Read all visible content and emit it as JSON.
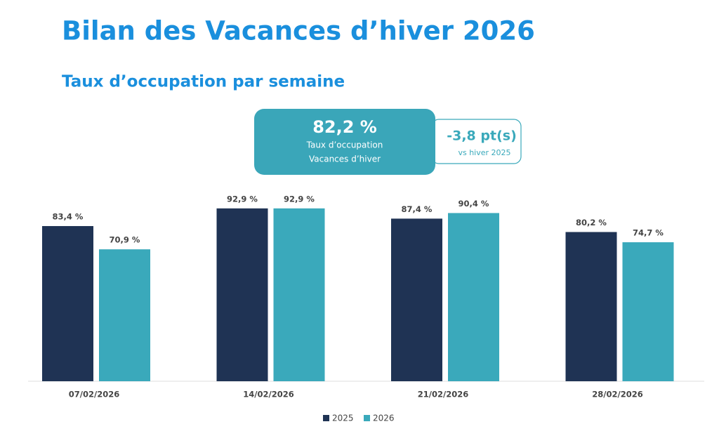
{
  "chart_data": {
    "type": "bar",
    "title": "Bilan des Vacances d’hiver 2026",
    "subtitle": "Taux d’occupation par semaine",
    "categories": [
      "07/02/2026",
      "14/02/2026",
      "21/02/2026",
      "28/02/2026"
    ],
    "series": [
      {
        "name": "2025",
        "color": "#1f3354",
        "values": [
          83.4,
          92.9,
          87.4,
          80.2
        ],
        "value_labels": [
          "83,4 %",
          "92,9 %",
          "87,4 %",
          "80,2 %"
        ]
      },
      {
        "name": "2026",
        "color": "#3aa9bb",
        "values": [
          70.9,
          92.9,
          90.4,
          74.7
        ],
        "value_labels": [
          "70,9 %",
          "92,9 %",
          "90,4 %",
          "74,7 %"
        ]
      }
    ],
    "ylim": [
      0,
      100
    ],
    "legend": "bottom"
  },
  "kpi": {
    "value": "82,2 %",
    "label_lines": [
      "Taux d’occupation",
      "Vacances d’hiver"
    ],
    "delta": "-3,8 pt(s)",
    "delta_note": "vs hiver 2025"
  }
}
